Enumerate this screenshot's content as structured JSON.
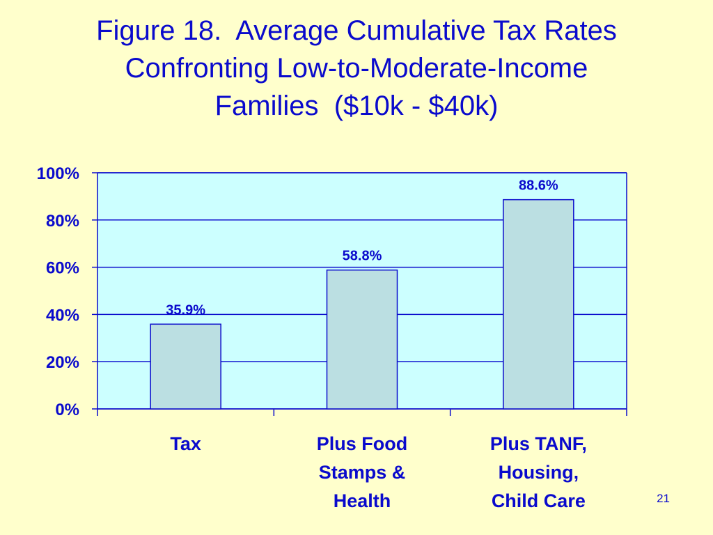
{
  "slide": {
    "background_color": "#FFFFCC",
    "text_color": "#0A0ACC",
    "title_lines": [
      "Figure 18.  Average Cumulative Tax Rates",
      "Confronting Low-to-Moderate-Income",
      "Families  ($10k - $40k)"
    ],
    "page_number": "21"
  },
  "chart_data": {
    "type": "bar",
    "title": "Figure 18.  Average Cumulative Tax Rates Confronting Low-to-Moderate-Income Families  ($10k - $40k)",
    "categories": [
      [
        "Tax"
      ],
      [
        "Plus Food",
        "Stamps &",
        "Health"
      ],
      [
        "Plus TANF,",
        "Housing,",
        "Child Care"
      ]
    ],
    "values": [
      35.9,
      58.8,
      88.6
    ],
    "data_labels": [
      "35.9%",
      "58.8%",
      "88.6%"
    ],
    "y_ticks": [
      0,
      20,
      40,
      60,
      80,
      100
    ],
    "y_tick_labels": [
      "0%",
      "20%",
      "40%",
      "60%",
      "80%",
      "100%"
    ],
    "ylim": [
      0,
      100
    ],
    "xlabel": "",
    "ylabel": "",
    "grid": true,
    "legend": "none",
    "plot_background": "#CCFFFF",
    "bar_fill": "#BBDFE2",
    "outline_color": "#0A0ACC"
  }
}
